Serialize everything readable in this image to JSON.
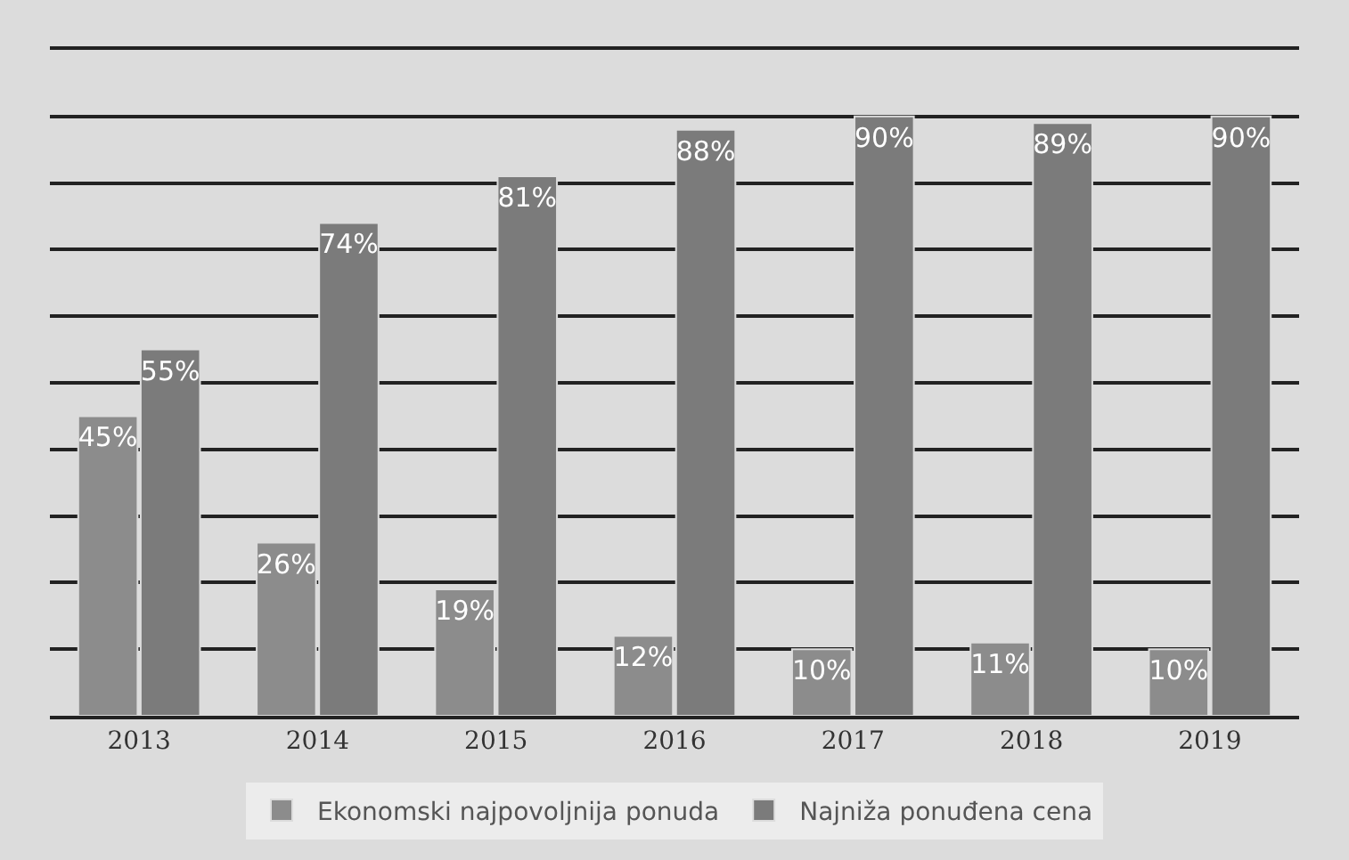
{
  "chart_data": {
    "type": "bar",
    "categories": [
      "2013",
      "2014",
      "2015",
      "2016",
      "2017",
      "2018",
      "2019"
    ],
    "series": [
      {
        "name": "Ekonomski najpovoljnija ponuda",
        "color": "#8c8c8c",
        "values": [
          45,
          26,
          19,
          12,
          10,
          11,
          10
        ],
        "value_labels": [
          "45%",
          "26%",
          "19%",
          "12%",
          "10%",
          "11%",
          "10%"
        ]
      },
      {
        "name": "Najniža ponuđena cena",
        "color": "#7b7b7b",
        "values": [
          55,
          74,
          81,
          88,
          90,
          89,
          90
        ],
        "value_labels": [
          "55%",
          "74%",
          "81%",
          "88%",
          "90%",
          "89%",
          "90%"
        ]
      }
    ],
    "ylim": [
      0,
      100
    ],
    "yticks": [
      {
        "value": 0,
        "label": null
      },
      {
        "value": 10,
        "label": null
      },
      {
        "value": 20,
        "label": null
      },
      {
        "value": 30,
        "label": null
      },
      {
        "value": 40,
        "label": null
      },
      {
        "value": 50,
        "label": null
      },
      {
        "value": 60,
        "label": null
      },
      {
        "value": 70,
        "label": null
      },
      {
        "value": 80,
        "label": null
      },
      {
        "value": 90,
        "label": null
      },
      {
        "value": 100,
        "label": null
      }
    ],
    "tick_labels": "x",
    "grid": "y",
    "legend": "bottom"
  }
}
